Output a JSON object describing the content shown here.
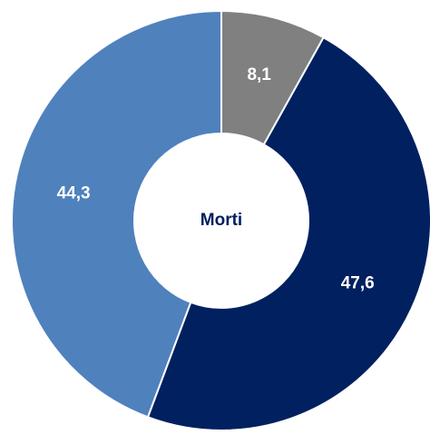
{
  "chart_data": {
    "type": "donut",
    "center_label": "Morti",
    "values": [
      8.1,
      47.6,
      44.3
    ],
    "value_labels": [
      "8,1",
      "47,6",
      "44,3"
    ],
    "colors": [
      "#808080",
      "#002060",
      "#4f81bd"
    ]
  }
}
